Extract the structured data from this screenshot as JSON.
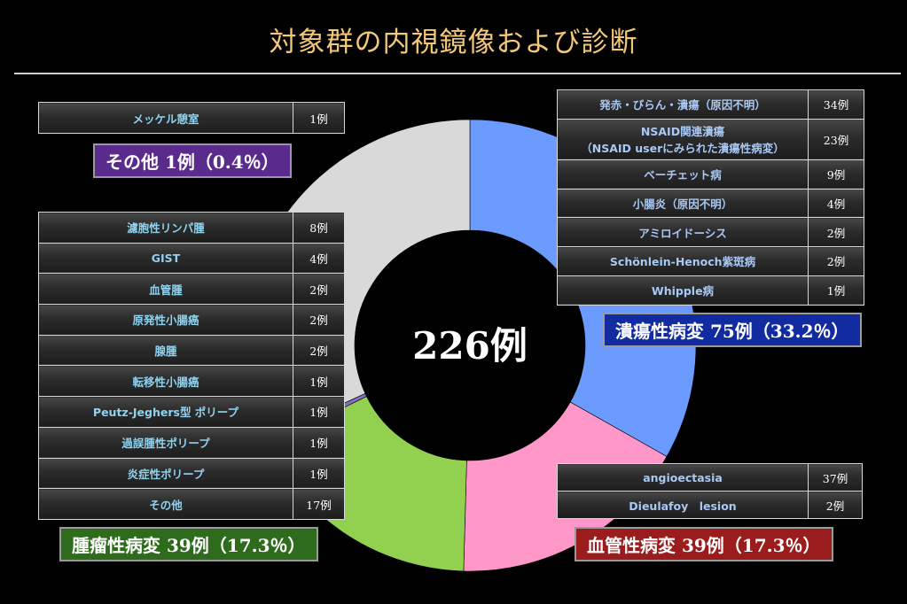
{
  "title": "対象群の内視鏡像および診断",
  "center_total": "226例",
  "categories": {
    "ulcer": {
      "label": "潰瘍性病変 75例（33.2％）",
      "color": "#132ba0"
    },
    "vascular": {
      "label": "血管性病変 39例（17.3％）",
      "color": "#9b1c1c"
    },
    "tumor": {
      "label": "腫瘤性病変 39例（17.3％）",
      "color": "#2f6b1c"
    },
    "other": {
      "label": "その他 1例（0.4％）",
      "color": "#5a2a8c"
    }
  },
  "tables": {
    "other": [
      {
        "label": "メッケル憩室",
        "count": "1例"
      }
    ],
    "tumor": [
      {
        "label": "濾胞性リンパ腫",
        "count": "8例"
      },
      {
        "label": "GIST",
        "count": "4例"
      },
      {
        "label": "血管腫",
        "count": "2例"
      },
      {
        "label": "原発性小腸癌",
        "count": "2例"
      },
      {
        "label": "腺腫",
        "count": "2例"
      },
      {
        "label": "転移性小腸癌",
        "count": "1例"
      },
      {
        "label": "Peutz-Jeghers型 ポリープ",
        "count": "1例"
      },
      {
        "label": "過誤腫性ポリープ",
        "count": "1例"
      },
      {
        "label": "炎症性ポリープ",
        "count": "1例"
      },
      {
        "label": "その他",
        "count": "17例"
      }
    ],
    "ulcer": [
      {
        "label": "発赤・びらん・潰瘍（原因不明）",
        "count": "34例"
      },
      {
        "label": "NSAID関連潰瘍\n（NSAID userにみられた潰瘍性病変）",
        "count": "23例"
      },
      {
        "label": "ベーチェット病",
        "count": "9例"
      },
      {
        "label": "小腸炎（原因不明）",
        "count": "4例"
      },
      {
        "label": "アミロイドーシス",
        "count": "2例"
      },
      {
        "label": "Schönlein-Henoch紫斑病",
        "count": "2例"
      },
      {
        "label": "Whipple病",
        "count": "1例"
      }
    ],
    "vascular": [
      {
        "label": "angioectasia",
        "count": "37例"
      },
      {
        "label": "Dieulafoy　lesion",
        "count": "2例"
      }
    ]
  },
  "chart_data": {
    "type": "pie",
    "donut": true,
    "total": 226,
    "slices": [
      {
        "key": "ulcer",
        "value": 75,
        "percent": 33.2,
        "color": "#6b9bff"
      },
      {
        "key": "vascular",
        "value": 39,
        "percent": 17.3,
        "color": "#ff97c9"
      },
      {
        "key": "tumor",
        "value": 39,
        "percent": 17.3,
        "color": "#92d050"
      },
      {
        "key": "other",
        "value": 1,
        "percent": 0.4,
        "color": "#8a6cc8"
      },
      {
        "key": "unlabeled",
        "value": 72,
        "percent": 31.8,
        "color": "#d9d9d9"
      }
    ],
    "start_angle_deg": 0,
    "direction": "clockwise"
  }
}
